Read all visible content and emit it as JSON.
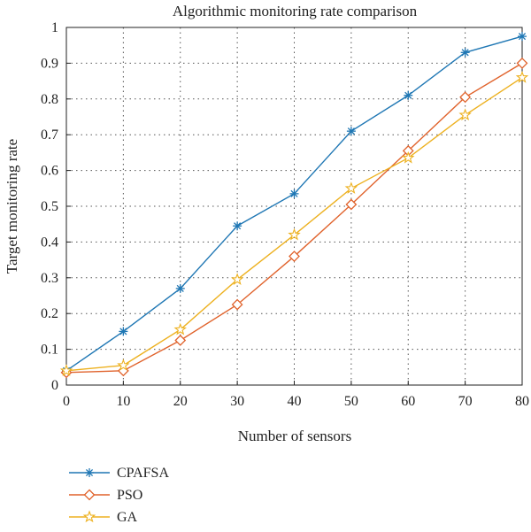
{
  "chart_data": {
    "type": "line",
    "title": "Algorithmic monitoring rate comparison",
    "xlabel": "Number of sensors",
    "ylabel": "Target monitoring rate",
    "xlim": [
      0,
      80
    ],
    "ylim": [
      0,
      1
    ],
    "x_ticks": [
      "0",
      "10",
      "20",
      "30",
      "40",
      "50",
      "60",
      "70",
      "80"
    ],
    "y_ticks": [
      "0",
      "0.1",
      "0.2",
      "0.3",
      "0.4",
      "0.5",
      "0.6",
      "0.7",
      "0.8",
      "0.9",
      "1"
    ],
    "grid": true,
    "legend_position": "bottom-left, below plot",
    "x": [
      0,
      10,
      20,
      30,
      40,
      50,
      60,
      70,
      80
    ],
    "series": [
      {
        "name": "CPAFSA",
        "color": "#1f77b4",
        "marker": "asterisk",
        "values": [
          0.04,
          0.15,
          0.27,
          0.445,
          0.535,
          0.71,
          0.81,
          0.93,
          0.975
        ]
      },
      {
        "name": "PSO",
        "color": "#e0622b",
        "marker": "diamond",
        "values": [
          0.035,
          0.04,
          0.125,
          0.225,
          0.36,
          0.505,
          0.655,
          0.805,
          0.9
        ]
      },
      {
        "name": "GA",
        "color": "#edb120",
        "marker": "star",
        "values": [
          0.04,
          0.055,
          0.155,
          0.295,
          0.42,
          0.55,
          0.635,
          0.755,
          0.86
        ]
      }
    ]
  }
}
